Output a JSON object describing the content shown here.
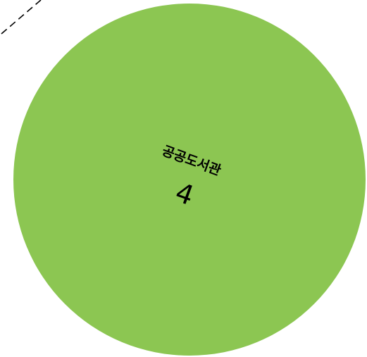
{
  "diagram": {
    "node": {
      "label": "공공도서관",
      "value": "4",
      "fill_color": "#8cc652"
    },
    "connector": {
      "style": "dashed",
      "color": "#000000"
    }
  }
}
